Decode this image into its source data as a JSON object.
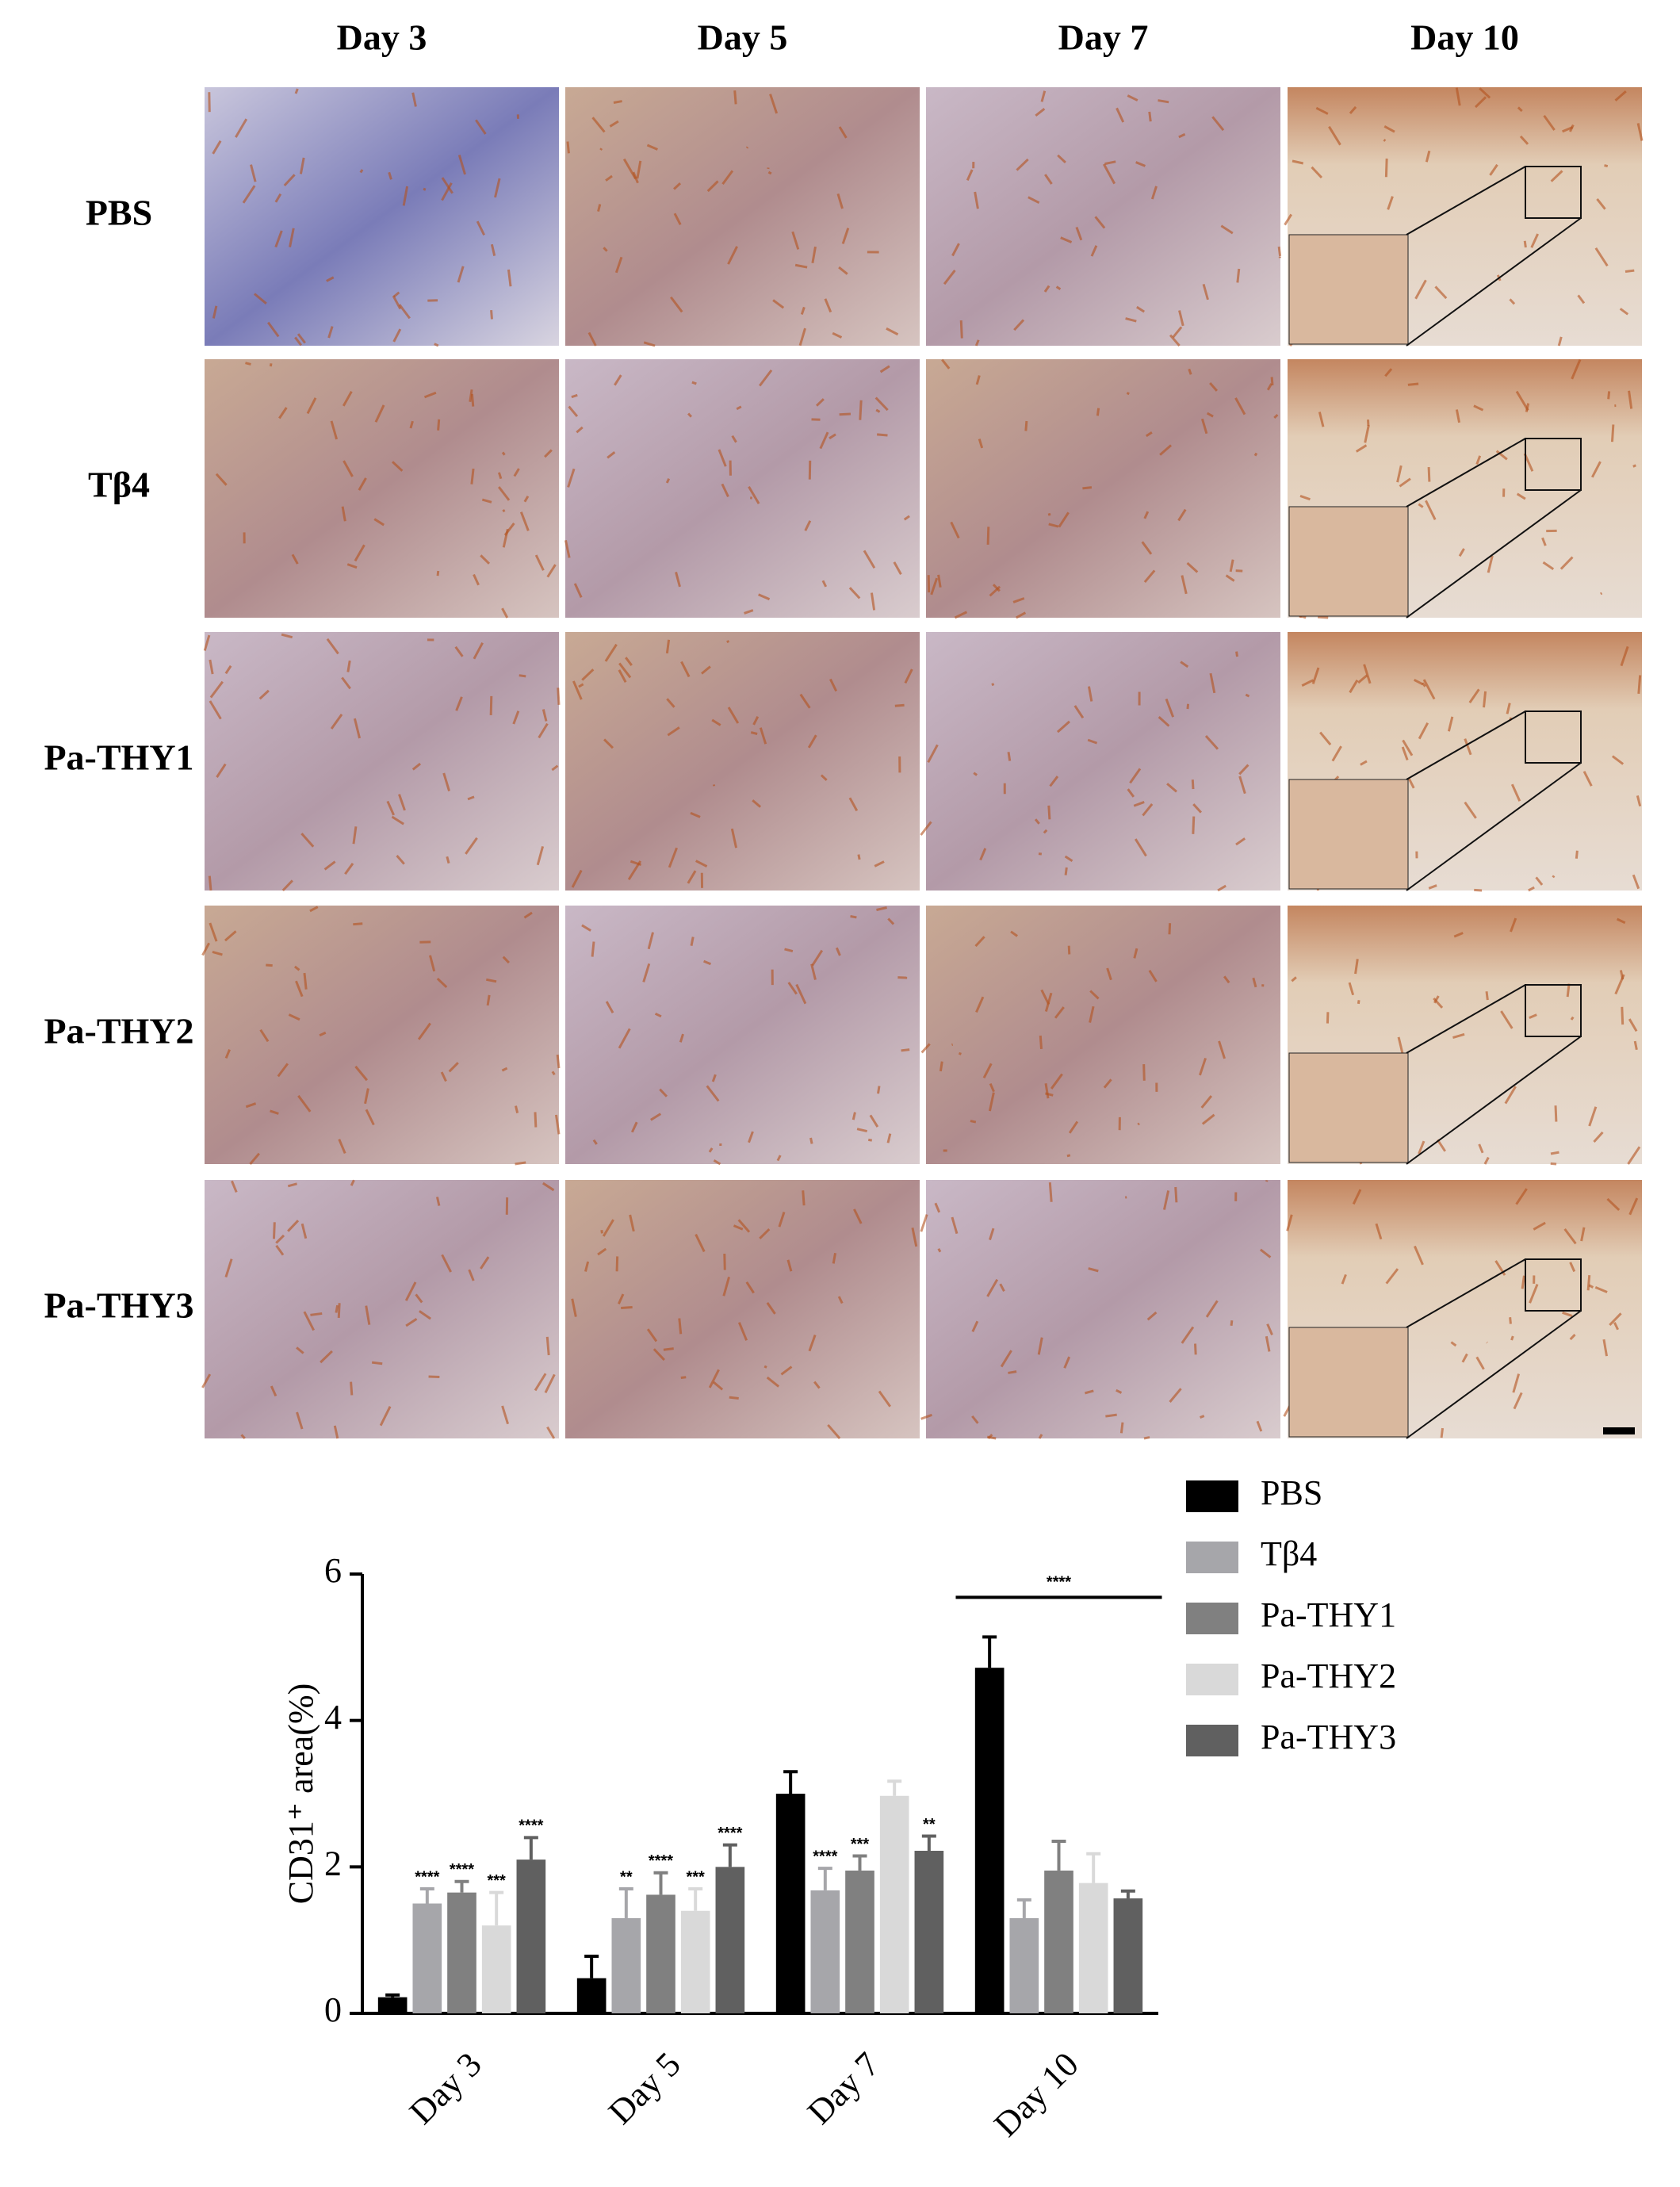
{
  "panel": {
    "columns": [
      "Day 3",
      "Day 5",
      "Day 7",
      "Day 10"
    ],
    "rows": [
      "PBS",
      "Tβ4",
      "Pa-THY1",
      "Pa-THY2",
      "Pa-THY3"
    ]
  },
  "chart_data": {
    "type": "bar",
    "ylabel": "CD31⁺ area(%)",
    "categories": [
      "Day 3",
      "Day 5",
      "Day 7",
      "Day 10"
    ],
    "ylim": [
      0,
      6
    ],
    "yticks": [
      0,
      2,
      4,
      6
    ],
    "series": [
      {
        "name": "PBS",
        "color": "#000000",
        "values": [
          0.22,
          0.48,
          3.0,
          4.72
        ],
        "errors": [
          0.03,
          0.3,
          0.3,
          0.42
        ],
        "annotations": [
          null,
          null,
          null,
          null
        ]
      },
      {
        "name": "Tβ4",
        "color": "#a6a6aa",
        "values": [
          1.5,
          1.3,
          1.68,
          1.3
        ],
        "errors": [
          0.2,
          0.4,
          0.3,
          0.25
        ],
        "annotations": [
          "****",
          "**",
          "****",
          null
        ]
      },
      {
        "name": "Pa-THY1",
        "color": "#808080",
        "values": [
          1.65,
          1.62,
          1.95,
          1.95
        ],
        "errors": [
          0.15,
          0.3,
          0.2,
          0.4
        ],
        "annotations": [
          "****",
          "****",
          "***",
          null
        ]
      },
      {
        "name": "Pa-THY2",
        "color": "#d9d9d9",
        "values": [
          1.2,
          1.4,
          2.97,
          1.78
        ],
        "errors": [
          0.45,
          0.3,
          0.2,
          0.4
        ],
        "annotations": [
          "***",
          "***",
          null,
          null
        ]
      },
      {
        "name": "Pa-THY3",
        "color": "#606060",
        "values": [
          2.1,
          2.0,
          2.22,
          1.57
        ],
        "errors": [
          0.3,
          0.3,
          0.2,
          0.1
        ],
        "annotations": [
          "****",
          "****",
          "**",
          null
        ]
      }
    ],
    "bracket": {
      "category": 3,
      "label": "****"
    }
  }
}
